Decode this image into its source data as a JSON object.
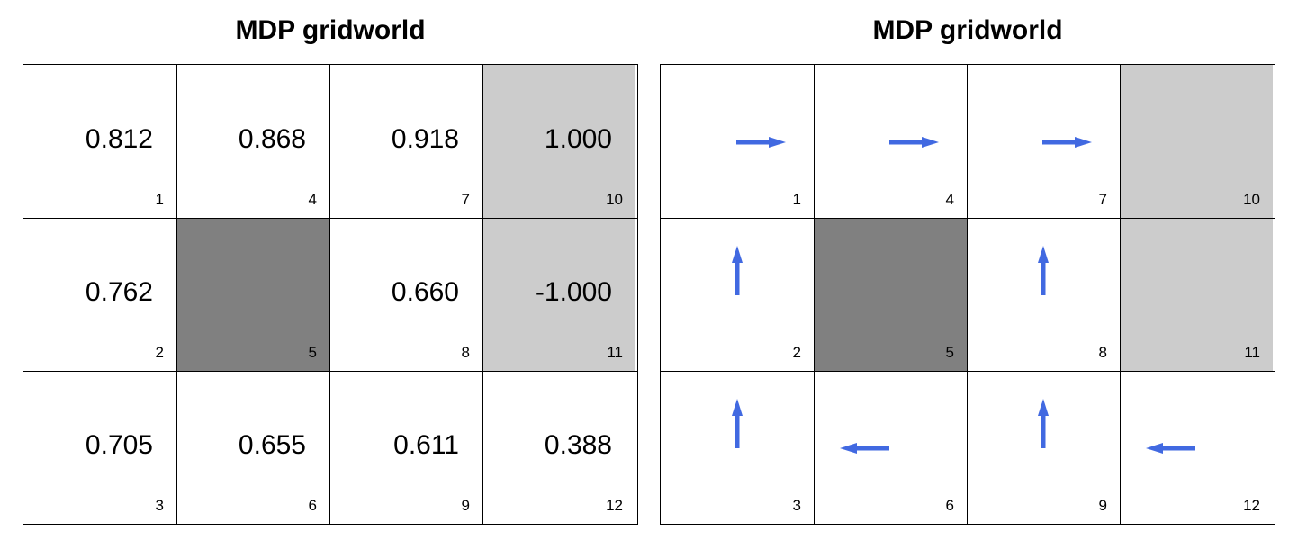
{
  "panels": [
    {
      "title": "MDP gridworld",
      "kind": "values"
    },
    {
      "title": "MDP gridworld",
      "kind": "policy"
    }
  ],
  "grid": {
    "rows": 3,
    "cols": 4,
    "cells": [
      {
        "id": "1",
        "row": 1,
        "col": 1,
        "type": "normal",
        "value": "0.812",
        "action": "right"
      },
      {
        "id": "2",
        "row": 2,
        "col": 1,
        "type": "normal",
        "value": "0.762",
        "action": "up"
      },
      {
        "id": "3",
        "row": 3,
        "col": 1,
        "type": "normal",
        "value": "0.705",
        "action": "up"
      },
      {
        "id": "4",
        "row": 1,
        "col": 2,
        "type": "normal",
        "value": "0.868",
        "action": "right"
      },
      {
        "id": "5",
        "row": 2,
        "col": 2,
        "type": "wall",
        "value": "",
        "action": ""
      },
      {
        "id": "6",
        "row": 3,
        "col": 2,
        "type": "normal",
        "value": "0.655",
        "action": "left"
      },
      {
        "id": "7",
        "row": 1,
        "col": 3,
        "type": "normal",
        "value": "0.918",
        "action": "right"
      },
      {
        "id": "8",
        "row": 2,
        "col": 3,
        "type": "normal",
        "value": "0.660",
        "action": "up"
      },
      {
        "id": "9",
        "row": 3,
        "col": 3,
        "type": "normal",
        "value": "0.611",
        "action": "up"
      },
      {
        "id": "10",
        "row": 1,
        "col": 4,
        "type": "terminal",
        "value": "1.000",
        "action": ""
      },
      {
        "id": "11",
        "row": 2,
        "col": 4,
        "type": "terminal",
        "value": "-1.000",
        "action": ""
      },
      {
        "id": "12",
        "row": 3,
        "col": 4,
        "type": "normal",
        "value": "0.388",
        "action": "left"
      }
    ]
  },
  "colors": {
    "terminal": "#cccccc",
    "wall": "#808080",
    "arrow": "#4169e1",
    "gridline": "#000000"
  }
}
